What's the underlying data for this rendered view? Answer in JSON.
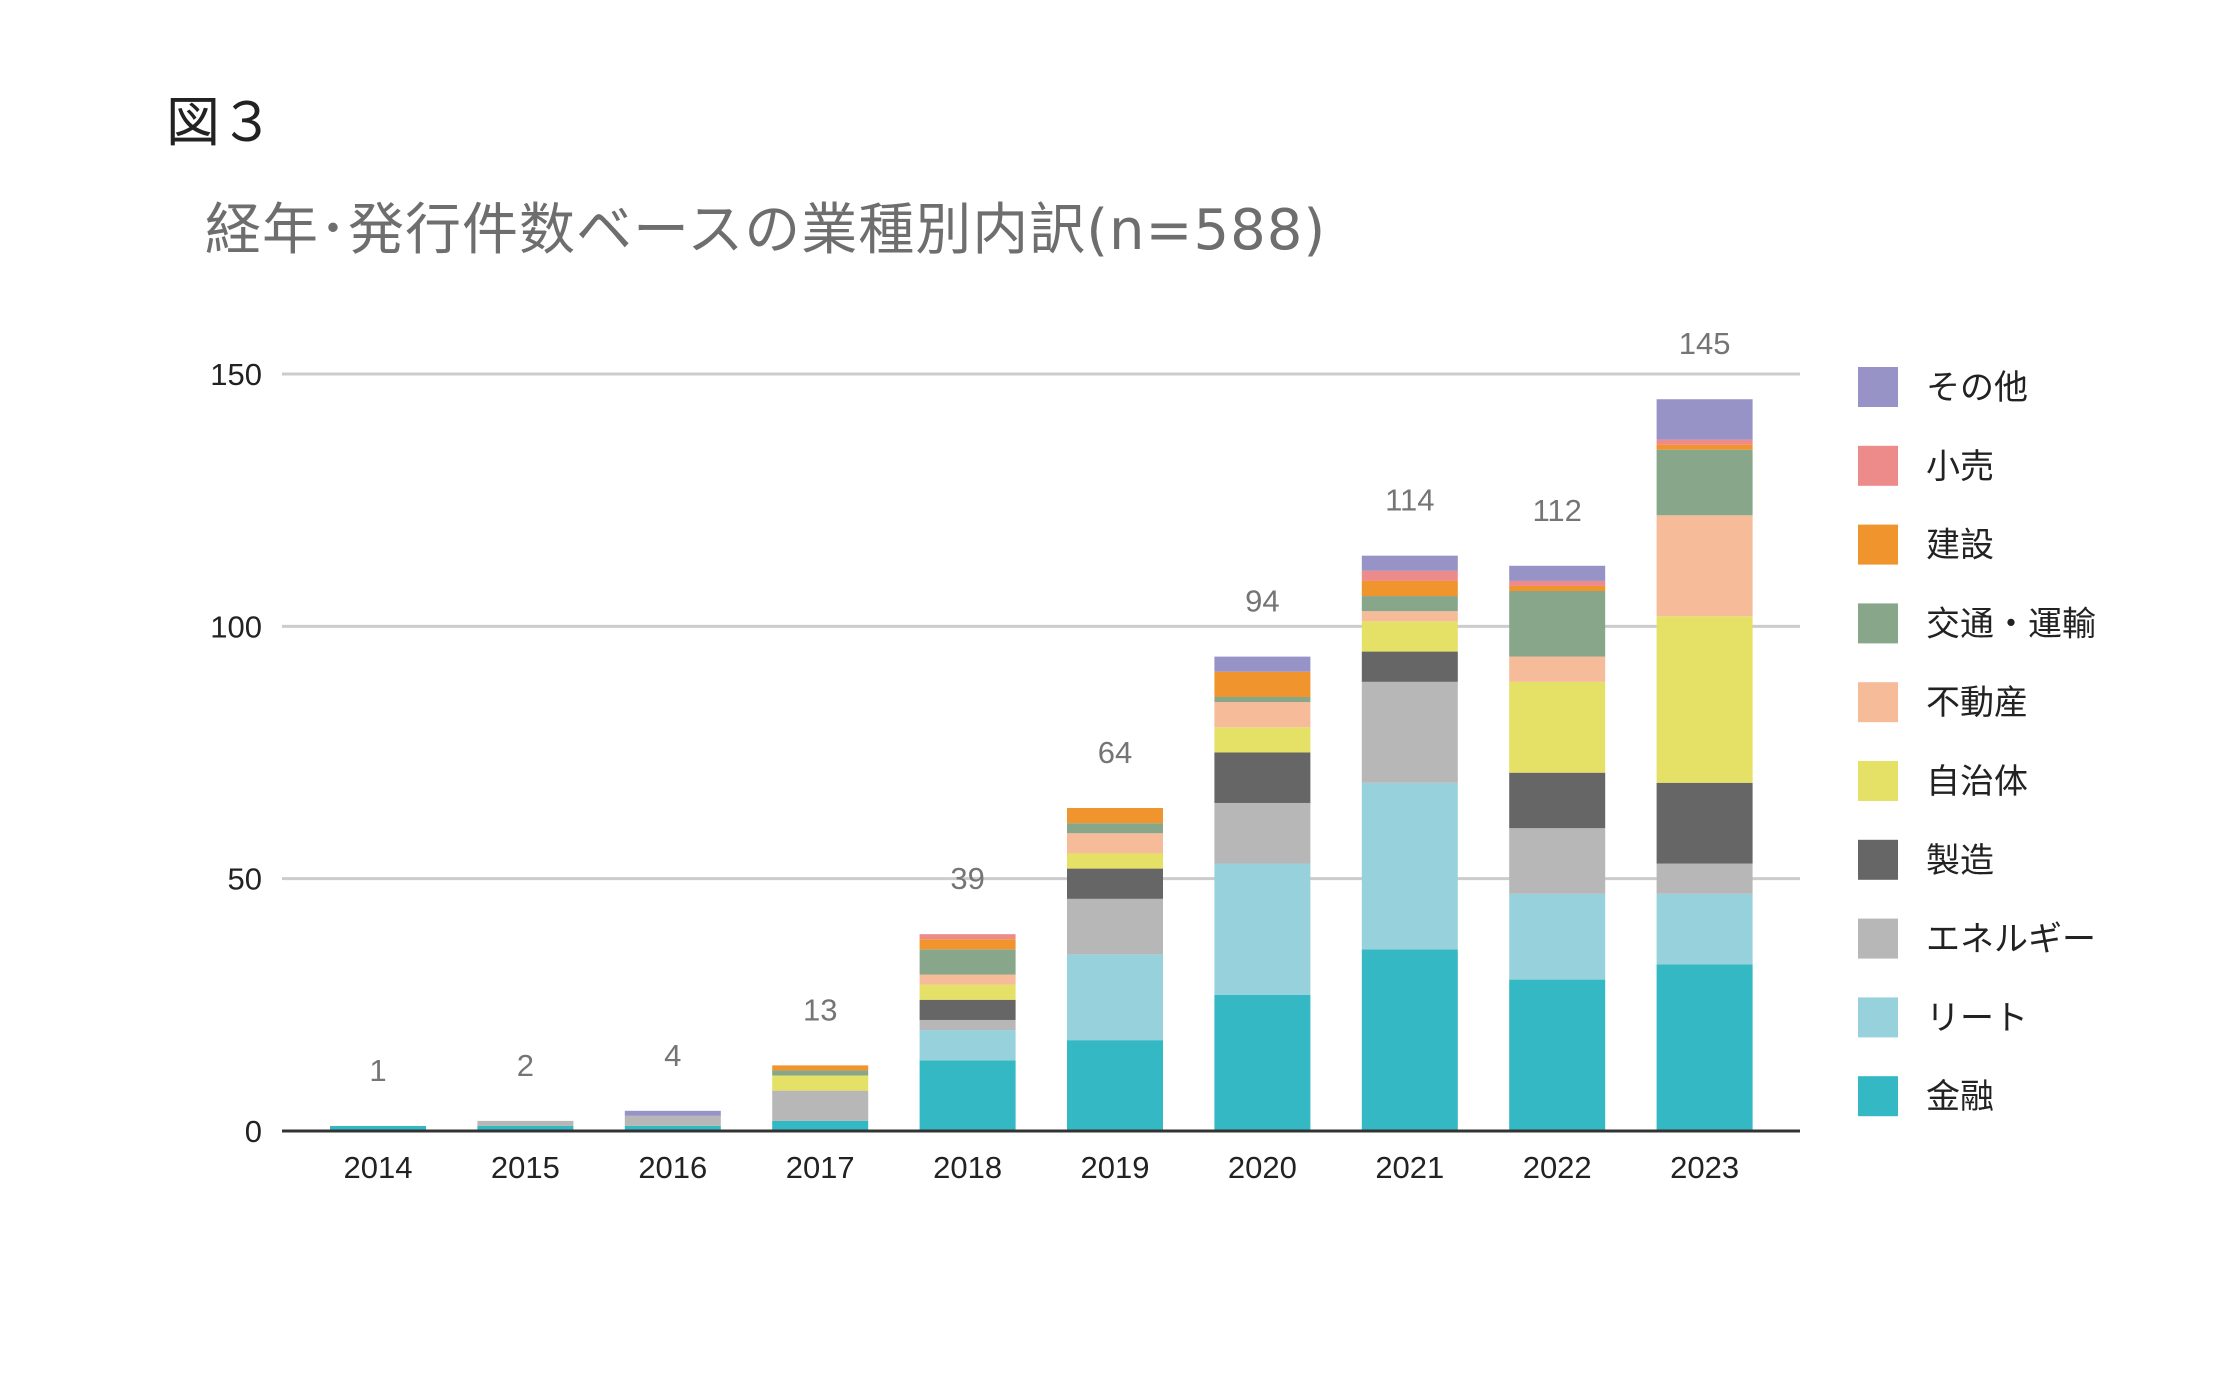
{
  "figure_label": "図３",
  "chart_data": {
    "type": "bar",
    "stacked": true,
    "title": "経年･発行件数ベースの業種別内訳(n=588)",
    "xlabel": "",
    "ylabel": "",
    "ylim": [
      0,
      150
    ],
    "yticks": [
      0,
      50,
      100,
      150
    ],
    "grid": true,
    "legend_position": "right",
    "categories": [
      "2014",
      "2015",
      "2016",
      "2017",
      "2018",
      "2019",
      "2020",
      "2021",
      "2022",
      "2023"
    ],
    "totals": [
      1,
      2,
      4,
      13,
      39,
      64,
      94,
      114,
      112,
      145
    ],
    "series": [
      {
        "name": "金融",
        "color": "#34b8c4",
        "values": [
          1,
          1,
          1,
          2,
          14,
          18,
          27,
          36,
          30,
          33
        ]
      },
      {
        "name": "リート",
        "color": "#97d2dc",
        "values": [
          0,
          0,
          0,
          0,
          6,
          17,
          26,
          33,
          17,
          14
        ]
      },
      {
        "name": "エネルギー",
        "color": "#b7b7b7",
        "values": [
          0,
          1,
          2,
          6,
          2,
          11,
          12,
          20,
          13,
          6
        ]
      },
      {
        "name": "製造",
        "color": "#666666",
        "values": [
          0,
          0,
          0,
          0,
          4,
          6,
          10,
          6,
          11,
          16
        ]
      },
      {
        "name": "自治体",
        "color": "#e5e066",
        "values": [
          0,
          0,
          0,
          3,
          3,
          3,
          5,
          6,
          18,
          33
        ]
      },
      {
        "name": "不動産",
        "color": "#f6bb98",
        "values": [
          0,
          0,
          0,
          0,
          2,
          4,
          5,
          2,
          5,
          20
        ]
      },
      {
        "name": "交通・運輸",
        "color": "#88a78a",
        "values": [
          0,
          0,
          0,
          1,
          5,
          2,
          1,
          3,
          13,
          13
        ]
      },
      {
        "name": "建設",
        "color": "#f0952d",
        "values": [
          0,
          0,
          0,
          1,
          2,
          3,
          5,
          3,
          1,
          1
        ]
      },
      {
        "name": "小売",
        "color": "#ed8a8a",
        "values": [
          0,
          0,
          0,
          0,
          1,
          0,
          0,
          2,
          1,
          1
        ]
      },
      {
        "name": "その他",
        "color": "#9893c6",
        "values": [
          0,
          0,
          1,
          0,
          0,
          0,
          3,
          3,
          3,
          8
        ]
      }
    ]
  }
}
